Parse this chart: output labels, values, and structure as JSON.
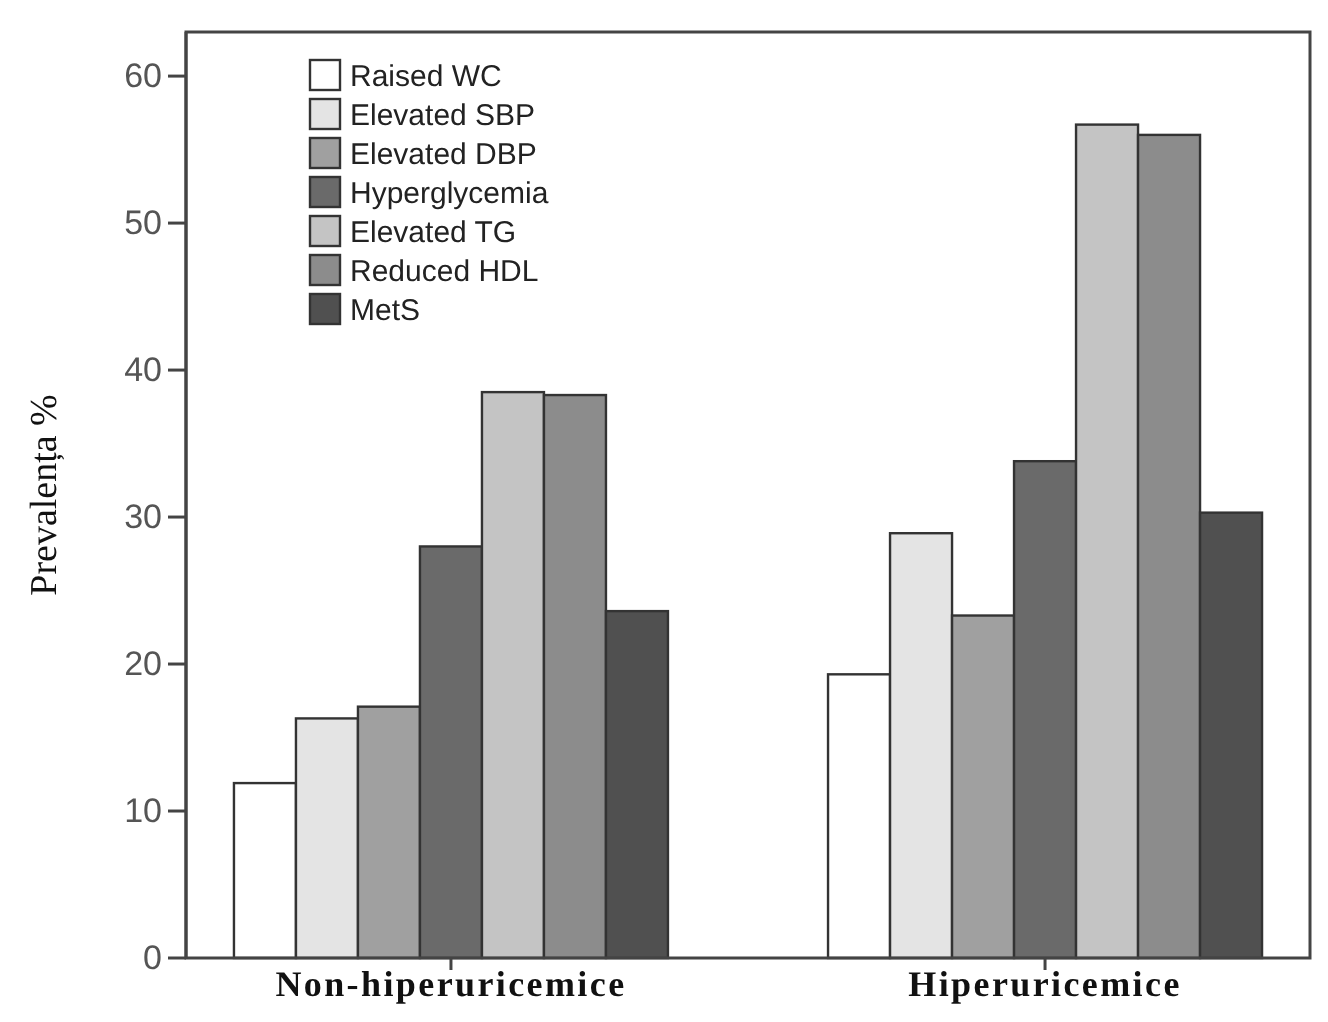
{
  "chart_data": {
    "type": "bar",
    "ylabel": "Prevalența %",
    "categories": [
      "Non-hiperuricemice",
      "Hiperuricemice"
    ],
    "series": [
      {
        "name": "Raised WC",
        "color": "#ffffff",
        "values": [
          11.9,
          19.3
        ]
      },
      {
        "name": "Elevated SBP",
        "color": "#e4e4e4",
        "values": [
          16.3,
          28.9
        ]
      },
      {
        "name": "Elevated DBP",
        "color": "#a0a0a0",
        "values": [
          17.1,
          23.3
        ]
      },
      {
        "name": "Hyperglycemia",
        "color": "#6a6a6a",
        "values": [
          28.0,
          33.8
        ]
      },
      {
        "name": "Elevated TG",
        "color": "#c4c4c4",
        "values": [
          38.5,
          56.7
        ]
      },
      {
        "name": "Reduced HDL",
        "color": "#8c8c8c",
        "values": [
          38.3,
          56.0
        ]
      },
      {
        "name": "MetS",
        "color": "#505050",
        "values": [
          23.6,
          30.3
        ]
      }
    ],
    "ylim": [
      0,
      63
    ],
    "yticks": [
      0,
      10,
      20,
      30,
      40,
      50,
      60
    ],
    "grid": false,
    "legend": "top left"
  }
}
